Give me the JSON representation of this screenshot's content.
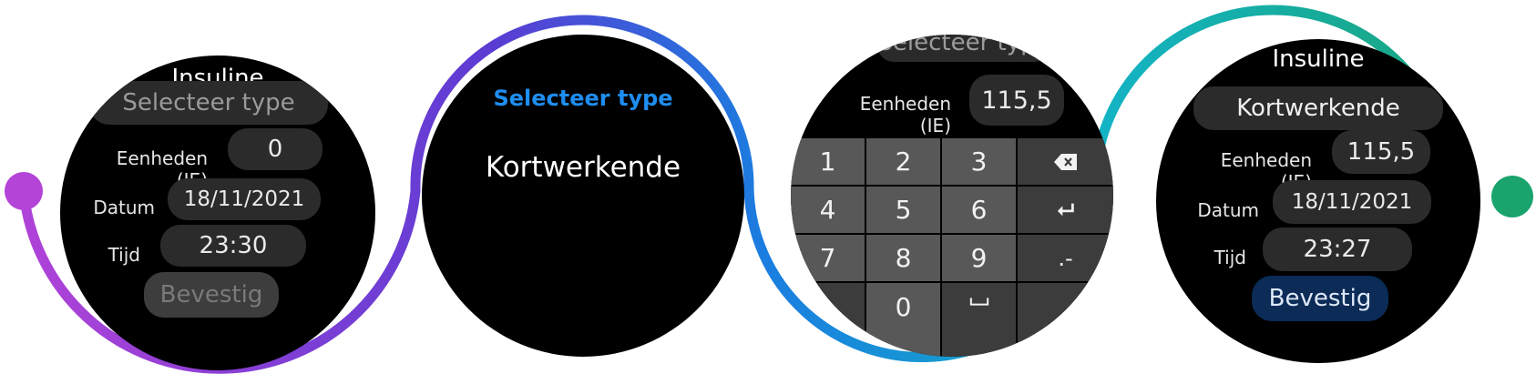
{
  "screen1": {
    "title": "Insuline",
    "type_placeholder": "Selecteer type",
    "units_label": "Eenheden (IE)",
    "units_value": "0",
    "date_label": "Datum",
    "date_value": "18/11/2021",
    "time_label": "Tijd",
    "time_value": "23:30",
    "confirm_label": "Bevestig",
    "confirm_enabled": false
  },
  "screen2": {
    "heading": "Selecteer type",
    "option": "Kortwerkende",
    "heading_color": "#1e8ef0"
  },
  "screen3": {
    "partial_header": "Selecteer type",
    "units_label": "Eenheden (IE)",
    "units_value": "115,5",
    "keys": [
      "1",
      "2",
      "3",
      "4",
      "5",
      "6",
      "7",
      "8",
      "9",
      "0"
    ],
    "special_keys": {
      "backspace": "backspace-icon",
      "enter": "enter-icon",
      "decimal": ".-",
      "space": "space-icon"
    }
  },
  "screen4": {
    "title": "Insuline",
    "type_value": "Kortwerkende",
    "units_label": "Eenheden (IE)",
    "units_value": "115,5",
    "date_label": "Datum",
    "date_value": "18/11/2021",
    "time_label": "Tijd",
    "time_value": "23:27",
    "confirm_label": "Bevestig",
    "confirm_enabled": true
  },
  "flow_line": {
    "start_color": "#b443d8",
    "mid_color": "#1f66d6",
    "end_color": "#1aa36d"
  }
}
